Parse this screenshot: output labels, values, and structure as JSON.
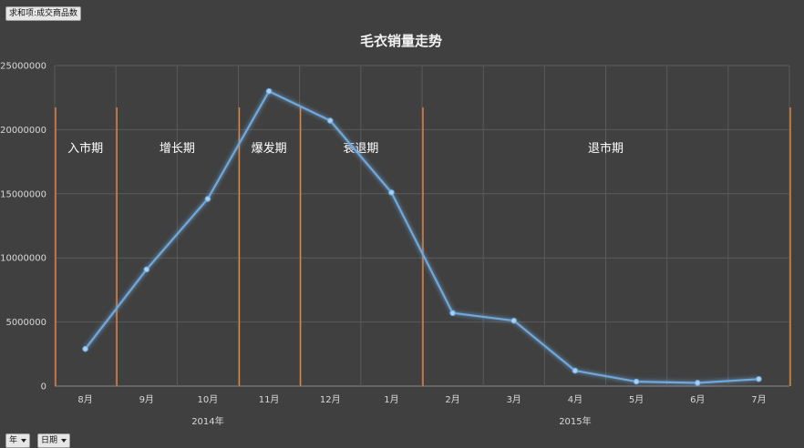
{
  "pivot": {
    "value_field": "求和项:成交商品数",
    "year_field": "年",
    "date_field": "日期"
  },
  "colors": {
    "background": "#404040",
    "line": "#6fa8dc",
    "phase_divider": "#e8823a",
    "grid": "#5a5a5a"
  },
  "chart_data": {
    "type": "line",
    "title": "毛衣销量走势",
    "xlabel": "",
    "ylabel": "",
    "ylim": [
      0,
      25000000
    ],
    "yticks": [
      0,
      5000000,
      10000000,
      15000000,
      20000000,
      25000000
    ],
    "categories": [
      "8月",
      "9月",
      "10月",
      "11月",
      "12月",
      "1月",
      "2月",
      "3月",
      "4月",
      "5月",
      "6月",
      "7月"
    ],
    "year_groups": [
      {
        "label": "2014年",
        "from": 0,
        "to": 4
      },
      {
        "label": "2015年",
        "from": 5,
        "to": 11
      }
    ],
    "series": [
      {
        "values": [
          2900000,
          9100000,
          14600000,
          23000000,
          20700000,
          15100000,
          5700000,
          5100000,
          1200000,
          350000,
          250000,
          550000
        ]
      }
    ],
    "phases": [
      {
        "label": "入市期",
        "from": 0,
        "to": 0
      },
      {
        "label": "增长期",
        "from": 1,
        "to": 2
      },
      {
        "label": "爆发期",
        "from": 3,
        "to": 3
      },
      {
        "label": "衰退期",
        "from": 4,
        "to": 5
      },
      {
        "label": "退市期",
        "from": 6,
        "to": 11
      }
    ],
    "grid": true,
    "legend": "none"
  }
}
